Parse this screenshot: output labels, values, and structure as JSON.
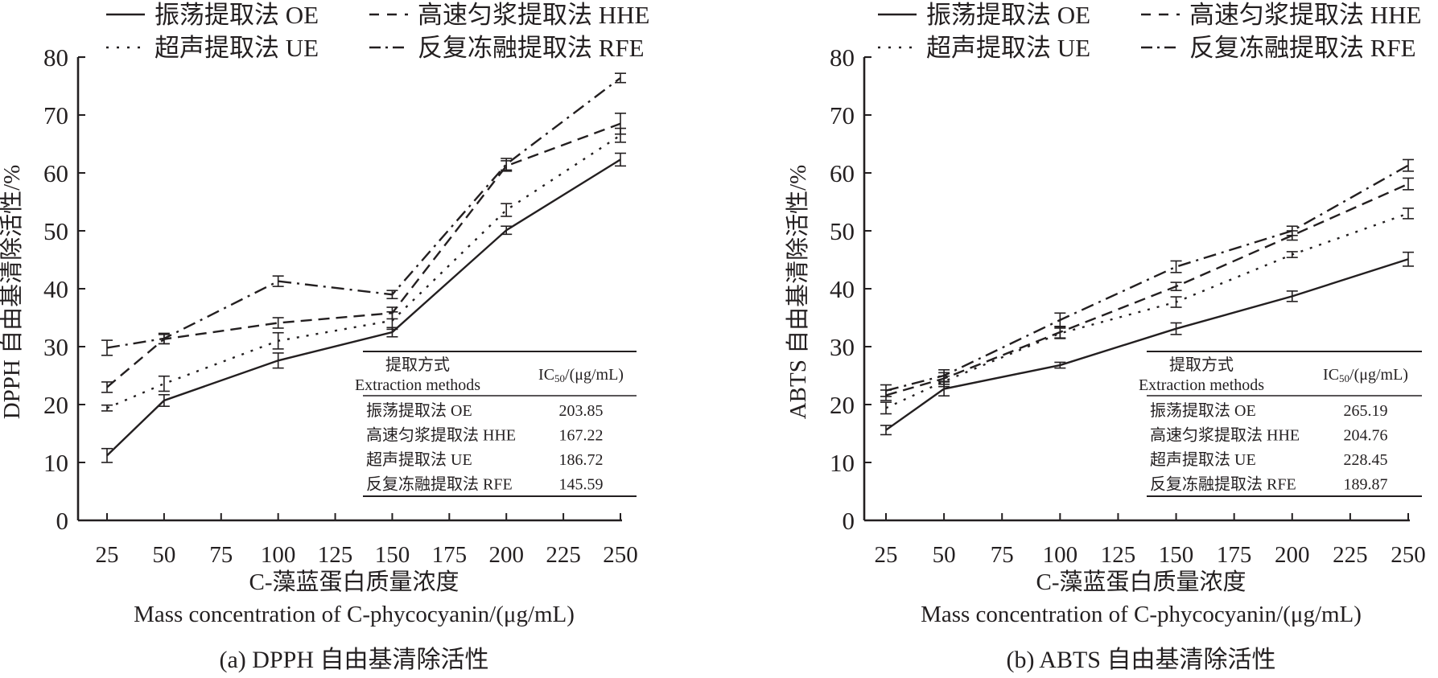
{
  "chart_data": [
    {
      "type": "line",
      "panel": "a",
      "caption": "(a) DPPH 自由基清除活性",
      "xlabel_cn": "C-藻蓝蛋白质量浓度",
      "xlabel_en": "Mass concentration of C-phycocyanin/(μg/mL)",
      "ylabel": "DPPH 自由基清除活性/%",
      "xlim": [
        10,
        255
      ],
      "ylim": [
        0,
        80
      ],
      "xticks": [
        25,
        50,
        75,
        100,
        125,
        150,
        175,
        200,
        225,
        250
      ],
      "yticks": [
        0,
        10,
        20,
        30,
        40,
        50,
        60,
        70,
        80
      ],
      "x": [
        25,
        50,
        100,
        150,
        200,
        250
      ],
      "series": [
        {
          "name": "振荡提取法  OE",
          "style": "solid",
          "values": [
            11.2,
            20.7,
            27.6,
            32.5,
            50.1,
            62.3
          ],
          "errors": [
            1.2,
            1.0,
            1.3,
            0.8,
            0.7,
            1.1
          ]
        },
        {
          "name": "高速匀浆提取法 HHE",
          "style": "dashed",
          "values": [
            23.0,
            31.3,
            34.1,
            35.8,
            61.2,
            68.5
          ],
          "errors": [
            0.9,
            0.8,
            0.9,
            1.0,
            0.9,
            1.8
          ]
        },
        {
          "name": "超声提取法 UE",
          "style": "dotted",
          "values": [
            19.4,
            23.6,
            31.0,
            34.5,
            53.6,
            66.5
          ],
          "errors": [
            0.5,
            1.3,
            1.4,
            1.5,
            1.1,
            1.2
          ]
        },
        {
          "name": "反复冻融提取法 RFE",
          "style": "dashdot",
          "values": [
            29.8,
            31.4,
            41.3,
            39.0,
            61.5,
            76.4
          ],
          "errors": [
            1.3,
            0.9,
            0.9,
            0.7,
            1.0,
            0.8
          ]
        }
      ],
      "table": {
        "header_method_cn": "提取方式",
        "header_method_en": "Extraction methods",
        "header_ic": "IC",
        "header_ic_sub": "50",
        "header_ic_unit": "/(μg/mL)",
        "rows": [
          {
            "method": "振荡提取法 OE",
            "ic50": "203.85"
          },
          {
            "method": "高速匀浆提取法 HHE",
            "ic50": "167.22"
          },
          {
            "method": "超声提取法 UE",
            "ic50": "186.72"
          },
          {
            "method": "反复冻融提取法 RFE",
            "ic50": "145.59"
          }
        ]
      },
      "legend": "top"
    },
    {
      "type": "line",
      "panel": "b",
      "caption": "(b) ABTS 自由基清除活性",
      "xlabel_cn": "C-藻蓝蛋白质量浓度",
      "xlabel_en": "Mass concentration of C-phycocyanin/(μg/mL)",
      "ylabel": "ABTS 自由基清除活性/%",
      "xlim": [
        10,
        255
      ],
      "ylim": [
        0,
        80
      ],
      "xticks": [
        25,
        50,
        75,
        100,
        125,
        150,
        175,
        200,
        225,
        250
      ],
      "yticks": [
        0,
        10,
        20,
        30,
        40,
        50,
        60,
        70,
        80
      ],
      "x": [
        25,
        50,
        100,
        150,
        200,
        250
      ],
      "series": [
        {
          "name": "振荡提取法  OE",
          "style": "solid",
          "values": [
            15.6,
            22.7,
            26.8,
            33.1,
            38.7,
            45.1
          ],
          "errors": [
            0.8,
            1.2,
            0.5,
            1.0,
            0.9,
            1.2
          ]
        },
        {
          "name": "高速匀浆提取法 HHE",
          "style": "dashed",
          "values": [
            21.6,
            24.5,
            32.5,
            40.4,
            49.2,
            58.1
          ],
          "errors": [
            0.9,
            1.0,
            1.0,
            0.7,
            0.8,
            1.0
          ]
        },
        {
          "name": "超声提取法 UE",
          "style": "dotted",
          "values": [
            19.4,
            24.0,
            32.3,
            37.7,
            45.9,
            53.0
          ],
          "errors": [
            1.0,
            0.9,
            0.9,
            0.9,
            0.5,
            0.9
          ]
        },
        {
          "name": "反复冻融提取法 RFE",
          "style": "dashdot",
          "values": [
            22.4,
            25.0,
            34.6,
            43.8,
            50.0,
            61.3
          ],
          "errors": [
            1.0,
            1.0,
            1.2,
            1.0,
            0.8,
            1.0
          ]
        }
      ],
      "table": {
        "header_method_cn": "提取方式",
        "header_method_en": "Extraction methods",
        "header_ic": "IC",
        "header_ic_sub": "50",
        "header_ic_unit": "/(μg/mL)",
        "rows": [
          {
            "method": "振荡提取法 OE",
            "ic50": "265.19"
          },
          {
            "method": "高速匀浆提取法 HHE",
            "ic50": "204.76"
          },
          {
            "method": "超声提取法 UE",
            "ic50": "228.45"
          },
          {
            "method": "反复冻融提取法 RFE",
            "ic50": "189.87"
          }
        ]
      },
      "legend": "top"
    }
  ]
}
